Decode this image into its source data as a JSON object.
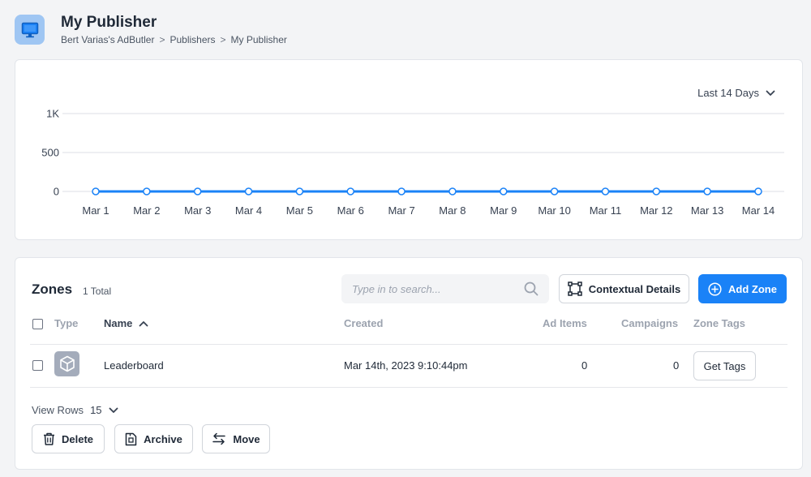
{
  "header": {
    "title": "My Publisher",
    "breadcrumb": [
      "Bert Varias's AdButler",
      "Publishers",
      "My Publisher"
    ],
    "breadcrumb_separator": ">",
    "icon": "monitor-icon"
  },
  "chart": {
    "range_label": "Last 14 Days",
    "accent": "#1a82f7"
  },
  "chart_data": {
    "type": "line",
    "categories": [
      "Mar 1",
      "Mar 2",
      "Mar 3",
      "Mar 4",
      "Mar 5",
      "Mar 6",
      "Mar 7",
      "Mar 8",
      "Mar 9",
      "Mar 10",
      "Mar 11",
      "Mar 12",
      "Mar 13",
      "Mar 14"
    ],
    "series": [
      {
        "values": [
          0,
          0,
          0,
          0,
          0,
          0,
          0,
          0,
          0,
          0,
          0,
          0,
          0,
          0
        ],
        "color": "#1a82f7"
      }
    ],
    "yticks": [
      "0",
      "500",
      "1K"
    ],
    "ylim": [
      0,
      1000
    ],
    "grid": true,
    "title": "",
    "xlabel": "",
    "ylabel": ""
  },
  "zones": {
    "title": "Zones",
    "count": "1 Total",
    "search_placeholder": "Type in to search...",
    "contextual_label": "Contextual Details",
    "add_label": "Add Zone",
    "columns": {
      "type": "Type",
      "name": "Name",
      "created": "Created",
      "ad_items": "Ad Items",
      "campaigns": "Campaigns",
      "zone_tags": "Zone Tags"
    },
    "rows": [
      {
        "name": "Leaderboard",
        "created": "Mar 14th, 2023 9:10:44pm",
        "ad_items": "0",
        "campaigns": "0",
        "tags_label": "Get Tags",
        "type_icon": "cube-icon"
      }
    ],
    "view_rows_label": "View Rows",
    "view_rows_value": "15",
    "actions": {
      "delete": "Delete",
      "archive": "Archive",
      "move": "Move"
    }
  }
}
